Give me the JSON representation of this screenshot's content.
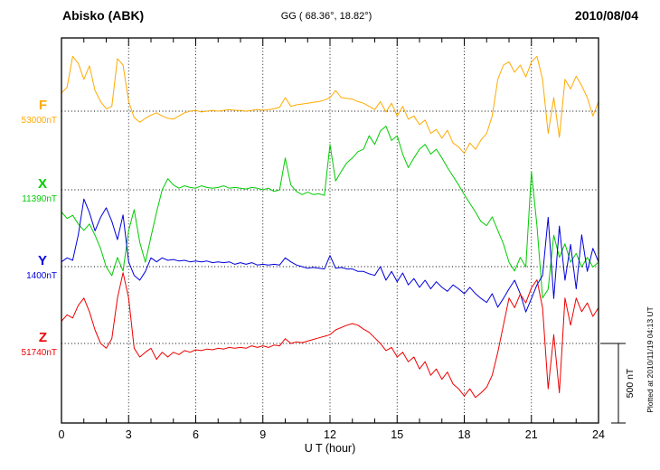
{
  "header": {
    "station": "Abisko (ABK)",
    "coords": "GG ( 68.36°,  18.82°)",
    "date": "2010/08/04"
  },
  "axis": {
    "xlabel": "U T (hour)",
    "x_ticks": [
      0,
      3,
      6,
      9,
      12,
      15,
      18,
      21,
      24
    ],
    "x_minor_step": 1
  },
  "scalebar": {
    "label": "500 nT",
    "nT": 500
  },
  "credit": "Plotted at 2010/11/19 04:13 UT",
  "chart_data": {
    "type": "line",
    "title": "Abisko (ABK) magnetogram",
    "date": "2010/08/04",
    "xlabel": "U T (hour)",
    "x_range": [
      0,
      24
    ],
    "x_step_hours": 0.25,
    "grid": "dotted vertical every 3 h, dotted horizontal at each component baseline",
    "scale_nT_per_bar": 500,
    "series": [
      {
        "name": "F",
        "label": "F",
        "baseline_label": "53000nT",
        "baseline_nT": 53000,
        "color": "#FFAA00",
        "offsets_nT": [
          115,
          150,
          345,
          300,
          200,
          285,
          130,
          60,
          15,
          30,
          330,
          290,
          60,
          -40,
          -70,
          -45,
          -25,
          -10,
          -30,
          -45,
          -50,
          -30,
          -10,
          0,
          5,
          -5,
          0,
          5,
          0,
          5,
          10,
          5,
          5,
          0,
          5,
          10,
          5,
          10,
          15,
          25,
          85,
          30,
          40,
          45,
          50,
          55,
          60,
          70,
          85,
          130,
          85,
          80,
          75,
          60,
          50,
          30,
          10,
          60,
          -5,
          50,
          -30,
          30,
          -50,
          -30,
          -85,
          -55,
          -140,
          -115,
          -170,
          -120,
          -200,
          -225,
          -265,
          -200,
          -240,
          -180,
          -140,
          -30,
          200,
          290,
          310,
          245,
          290,
          215,
          310,
          345,
          200,
          -140,
          85,
          -165,
          200,
          140,
          220,
          160,
          85,
          -30,
          60
        ]
      },
      {
        "name": "X",
        "label": "X",
        "baseline_label": "11390nT",
        "baseline_nT": 11390,
        "color": "#00CC00",
        "offsets_nT": [
          -140,
          -180,
          -160,
          -215,
          -255,
          -215,
          -285,
          -370,
          -485,
          -540,
          -425,
          -510,
          -255,
          -125,
          -330,
          -455,
          -295,
          -140,
          0,
          70,
          30,
          10,
          25,
          15,
          10,
          25,
          15,
          10,
          15,
          25,
          10,
          15,
          10,
          5,
          15,
          10,
          0,
          10,
          -10,
          0,
          200,
          30,
          -10,
          -30,
          -15,
          -30,
          -25,
          -35,
          285,
          55,
          115,
          170,
          200,
          240,
          255,
          340,
          285,
          370,
          400,
          310,
          340,
          225,
          140,
          200,
          255,
          285,
          225,
          255,
          200,
          140,
          85,
          30,
          -30,
          -85,
          -140,
          -200,
          -225,
          -170,
          -255,
          -340,
          -455,
          -510,
          -425,
          -485,
          115,
          -225,
          -680,
          -625,
          -285,
          -425,
          -340,
          -455,
          -400,
          -485,
          -425,
          -485,
          -455
        ]
      },
      {
        "name": "Y",
        "label": "Y",
        "baseline_label": "1400nT",
        "baseline_nT": 1400,
        "color": "#0000DD",
        "offsets_nT": [
          30,
          55,
          40,
          200,
          425,
          340,
          225,
          310,
          370,
          285,
          170,
          325,
          30,
          -55,
          -85,
          -30,
          55,
          30,
          55,
          40,
          45,
          35,
          40,
          30,
          35,
          30,
          35,
          25,
          30,
          25,
          30,
          15,
          25,
          15,
          25,
          10,
          15,
          10,
          15,
          10,
          55,
          30,
          10,
          0,
          -10,
          -5,
          -10,
          -15,
          70,
          -10,
          -5,
          -15,
          -15,
          -30,
          -30,
          -45,
          -55,
          0,
          -85,
          -30,
          -95,
          -40,
          -115,
          -75,
          -130,
          -85,
          -140,
          -95,
          -130,
          -155,
          -115,
          -140,
          -170,
          -130,
          -170,
          -200,
          -225,
          -170,
          -255,
          -200,
          -140,
          -85,
          -170,
          -285,
          -200,
          -115,
          -55,
          310,
          -200,
          255,
          -85,
          140,
          -140,
          200,
          -30,
          115,
          30
        ]
      },
      {
        "name": "Z",
        "label": "Z",
        "baseline_label": "51740nT",
        "baseline_nT": 51740,
        "color": "#EE0000",
        "offsets_nT": [
          140,
          180,
          160,
          240,
          285,
          200,
          85,
          0,
          -30,
          30,
          285,
          445,
          285,
          -30,
          -85,
          -55,
          -30,
          -100,
          -55,
          -85,
          -55,
          -70,
          -45,
          -55,
          -40,
          -45,
          -35,
          -40,
          -30,
          -35,
          -25,
          -30,
          -25,
          -30,
          -15,
          -25,
          -15,
          -25,
          -10,
          -15,
          30,
          0,
          10,
          5,
          15,
          25,
          35,
          45,
          55,
          85,
          100,
          115,
          125,
          115,
          90,
          70,
          35,
          0,
          -45,
          -25,
          -85,
          -55,
          -115,
          -85,
          -160,
          -115,
          -200,
          -160,
          -225,
          -180,
          -255,
          -285,
          -330,
          -285,
          -340,
          -310,
          -275,
          -200,
          -55,
          115,
          285,
          225,
          310,
          255,
          350,
          400,
          225,
          -285,
          55,
          -310,
          285,
          115,
          285,
          200,
          255,
          170,
          225
        ]
      }
    ]
  }
}
